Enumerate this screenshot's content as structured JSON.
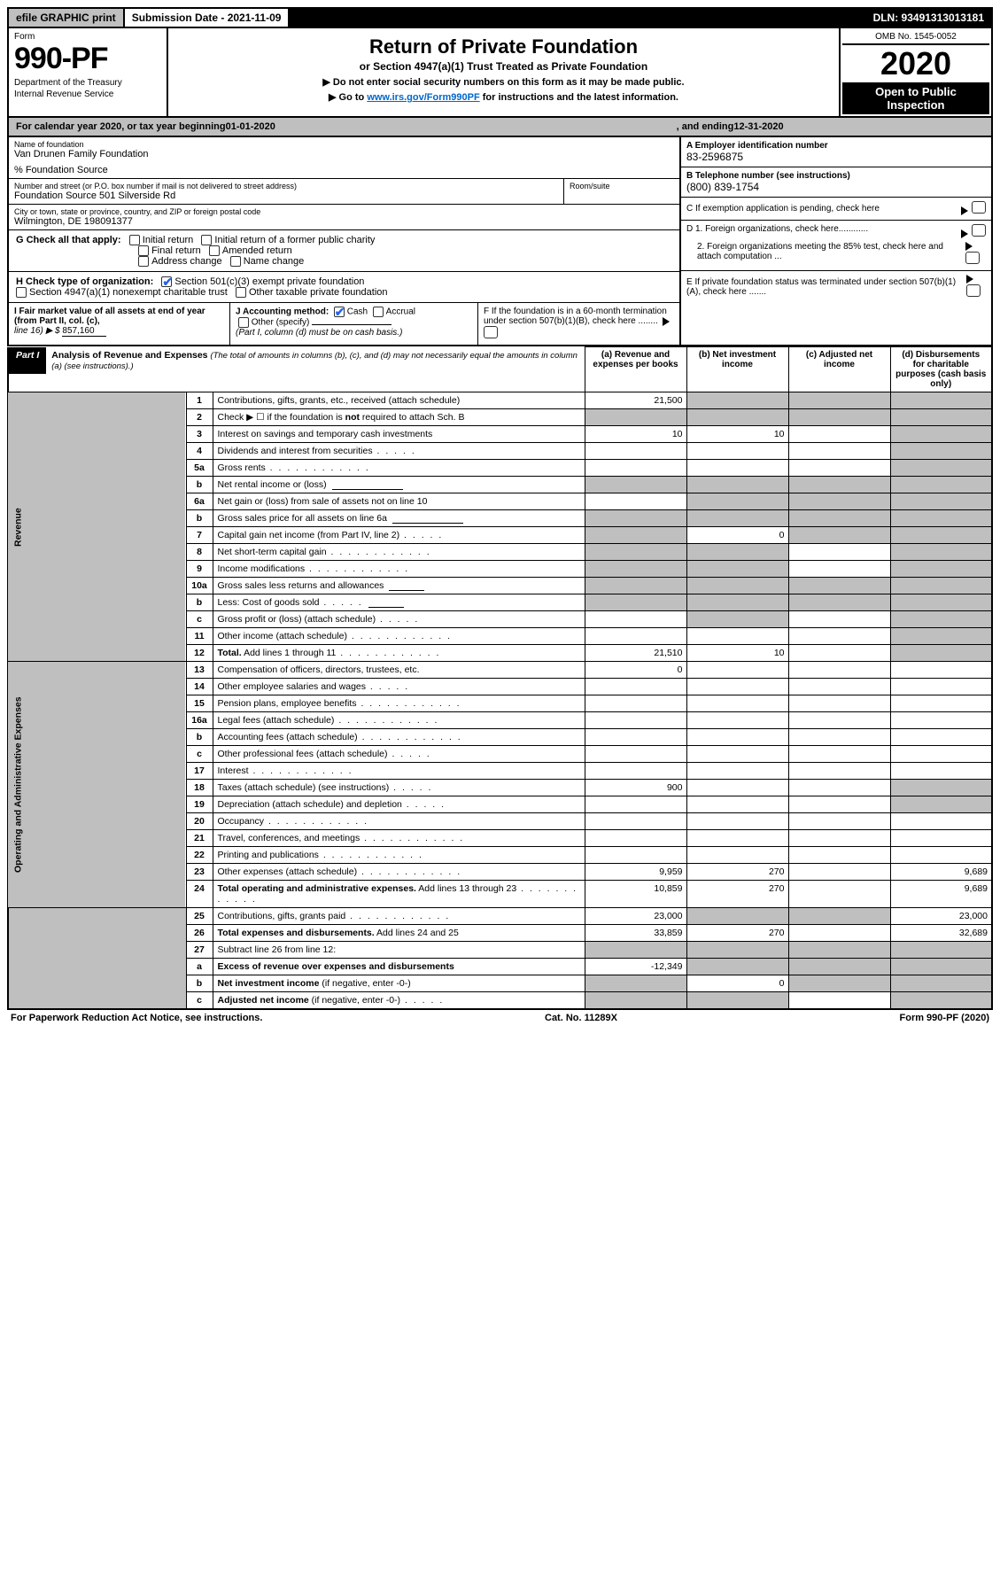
{
  "topbar": {
    "efile": "efile GRAPHIC print",
    "submission": "Submission Date - 2021-11-09",
    "dln": "DLN: 93491313013181"
  },
  "header": {
    "form_word": "Form",
    "form_num": "990-PF",
    "dept1": "Department of the Treasury",
    "dept2": "Internal Revenue Service",
    "title": "Return of Private Foundation",
    "subtitle": "or Section 4947(a)(1) Trust Treated as Private Foundation",
    "instr1": "▶ Do not enter social security numbers on this form as it may be made public.",
    "instr2_pre": "▶ Go to ",
    "instr2_link": "www.irs.gov/Form990PF",
    "instr2_post": " for instructions and the latest information.",
    "omb": "OMB No. 1545-0052",
    "year": "2020",
    "open": "Open to Public Inspection"
  },
  "calyear": {
    "pre": "For calendar year 2020, or tax year beginning ",
    "begin": "01-01-2020",
    "mid": ", and ending ",
    "end": "12-31-2020"
  },
  "entity": {
    "name_lbl": "Name of foundation",
    "name": "Van Drunen Family Foundation",
    "care_lbl": "% Foundation Source",
    "addr_lbl": "Number and street (or P.O. box number if mail is not delivered to street address)",
    "addr": "Foundation Source 501 Silverside Rd",
    "room_lbl": "Room/suite",
    "city_lbl": "City or town, state or province, country, and ZIP or foreign postal code",
    "city": "Wilmington, DE 198091377"
  },
  "right": {
    "A_lbl": "A Employer identification number",
    "A_val": "83-2596875",
    "B_lbl": "B Telephone number (see instructions)",
    "B_val": "(800) 839-1754",
    "C_lbl": "C If exemption application is pending, check here",
    "D1": "D 1. Foreign organizations, check here............",
    "D2": "2. Foreign organizations meeting the 85% test, check here and attach computation ...",
    "E": "E  If private foundation status was terminated under section 507(b)(1)(A), check here .......",
    "F": "F  If the foundation is in a 60-month termination under section 507(b)(1)(B), check here ........"
  },
  "G": {
    "lbl": "G Check all that apply:",
    "opts": [
      "Initial return",
      "Initial return of a former public charity",
      "Final return",
      "Amended return",
      "Address change",
      "Name change"
    ]
  },
  "H": {
    "lbl": "H Check type of organization:",
    "o1": "Section 501(c)(3) exempt private foundation",
    "o2": "Section 4947(a)(1) nonexempt charitable trust",
    "o3": "Other taxable private foundation"
  },
  "I": {
    "lbl": "I Fair market value of all assets at end of year (from Part II, col. (c),",
    "line": "line 16) ▶ $",
    "val": "857,160"
  },
  "J": {
    "lbl": "J Accounting method:",
    "o1": "Cash",
    "o2": "Accrual",
    "o3": "Other (specify)",
    "note": "(Part I, column (d) must be on cash basis.)"
  },
  "part1": {
    "label": "Part I",
    "title": "Analysis of Revenue and Expenses",
    "title_note": "(The total of amounts in columns (b), (c), and (d) may not necessarily equal the amounts in column (a) (see instructions).)",
    "col_a": "(a) Revenue and expenses per books",
    "col_b": "(b) Net investment income",
    "col_c": "(c) Adjusted net income",
    "col_d": "(d) Disbursements for charitable purposes (cash basis only)",
    "revenue_lbl": "Revenue",
    "expenses_lbl": "Operating and Administrative Expenses"
  },
  "rows": {
    "r1": {
      "n": "1",
      "d": "Contributions, gifts, grants, etc., received (attach schedule)",
      "a": "21,500"
    },
    "r2": {
      "n": "2",
      "d": "Check ▶ ☐ if the foundation is <b>not</b> required to attach Sch. B"
    },
    "r3": {
      "n": "3",
      "d": "Interest on savings and temporary cash investments",
      "a": "10",
      "b": "10"
    },
    "r4": {
      "n": "4",
      "d": "Dividends and interest from securities"
    },
    "r5a": {
      "n": "5a",
      "d": "Gross rents"
    },
    "r5b": {
      "n": "b",
      "d": "Net rental income or (loss)"
    },
    "r6a": {
      "n": "6a",
      "d": "Net gain or (loss) from sale of assets not on line 10"
    },
    "r6b": {
      "n": "b",
      "d": "Gross sales price for all assets on line 6a"
    },
    "r7": {
      "n": "7",
      "d": "Capital gain net income (from Part IV, line 2)",
      "b": "0"
    },
    "r8": {
      "n": "8",
      "d": "Net short-term capital gain"
    },
    "r9": {
      "n": "9",
      "d": "Income modifications"
    },
    "r10a": {
      "n": "10a",
      "d": "Gross sales less returns and allowances"
    },
    "r10b": {
      "n": "b",
      "d": "Less: Cost of goods sold"
    },
    "r10c": {
      "n": "c",
      "d": "Gross profit or (loss) (attach schedule)"
    },
    "r11": {
      "n": "11",
      "d": "Other income (attach schedule)"
    },
    "r12": {
      "n": "12",
      "d": "<b>Total.</b> Add lines 1 through 11",
      "a": "21,510",
      "b": "10"
    },
    "r13": {
      "n": "13",
      "d": "Compensation of officers, directors, trustees, etc.",
      "a": "0"
    },
    "r14": {
      "n": "14",
      "d": "Other employee salaries and wages"
    },
    "r15": {
      "n": "15",
      "d": "Pension plans, employee benefits"
    },
    "r16a": {
      "n": "16a",
      "d": "Legal fees (attach schedule)"
    },
    "r16b": {
      "n": "b",
      "d": "Accounting fees (attach schedule)"
    },
    "r16c": {
      "n": "c",
      "d": "Other professional fees (attach schedule)"
    },
    "r17": {
      "n": "17",
      "d": "Interest"
    },
    "r18": {
      "n": "18",
      "d": "Taxes (attach schedule) (see instructions)",
      "a": "900"
    },
    "r19": {
      "n": "19",
      "d": "Depreciation (attach schedule) and depletion"
    },
    "r20": {
      "n": "20",
      "d": "Occupancy"
    },
    "r21": {
      "n": "21",
      "d": "Travel, conferences, and meetings"
    },
    "r22": {
      "n": "22",
      "d": "Printing and publications"
    },
    "r23": {
      "n": "23",
      "d": "Other expenses (attach schedule)",
      "a": "9,959",
      "b": "270",
      "dd": "9,689"
    },
    "r24": {
      "n": "24",
      "d": "<b>Total operating and administrative expenses.</b> Add lines 13 through 23",
      "a": "10,859",
      "b": "270",
      "dd": "9,689"
    },
    "r25": {
      "n": "25",
      "d": "Contributions, gifts, grants paid",
      "a": "23,000",
      "dd": "23,000"
    },
    "r26": {
      "n": "26",
      "d": "<b>Total expenses and disbursements.</b> Add lines 24 and 25",
      "a": "33,859",
      "b": "270",
      "dd": "32,689"
    },
    "r27": {
      "n": "27",
      "d": "Subtract line 26 from line 12:"
    },
    "r27a": {
      "n": "a",
      "d": "<b>Excess of revenue over expenses and disbursements</b>",
      "a": "-12,349"
    },
    "r27b": {
      "n": "b",
      "d": "<b>Net investment income</b> (if negative, enter -0-)",
      "b": "0"
    },
    "r27c": {
      "n": "c",
      "d": "<b>Adjusted net income</b> (if negative, enter -0-)"
    }
  },
  "footer": {
    "left": "For Paperwork Reduction Act Notice, see instructions.",
    "mid": "Cat. No. 11289X",
    "right": "Form 990-PF (2020)"
  },
  "colors": {
    "shade": "#bfbfbf",
    "black": "#000000",
    "link": "#0066cc",
    "check": "#2563eb"
  }
}
